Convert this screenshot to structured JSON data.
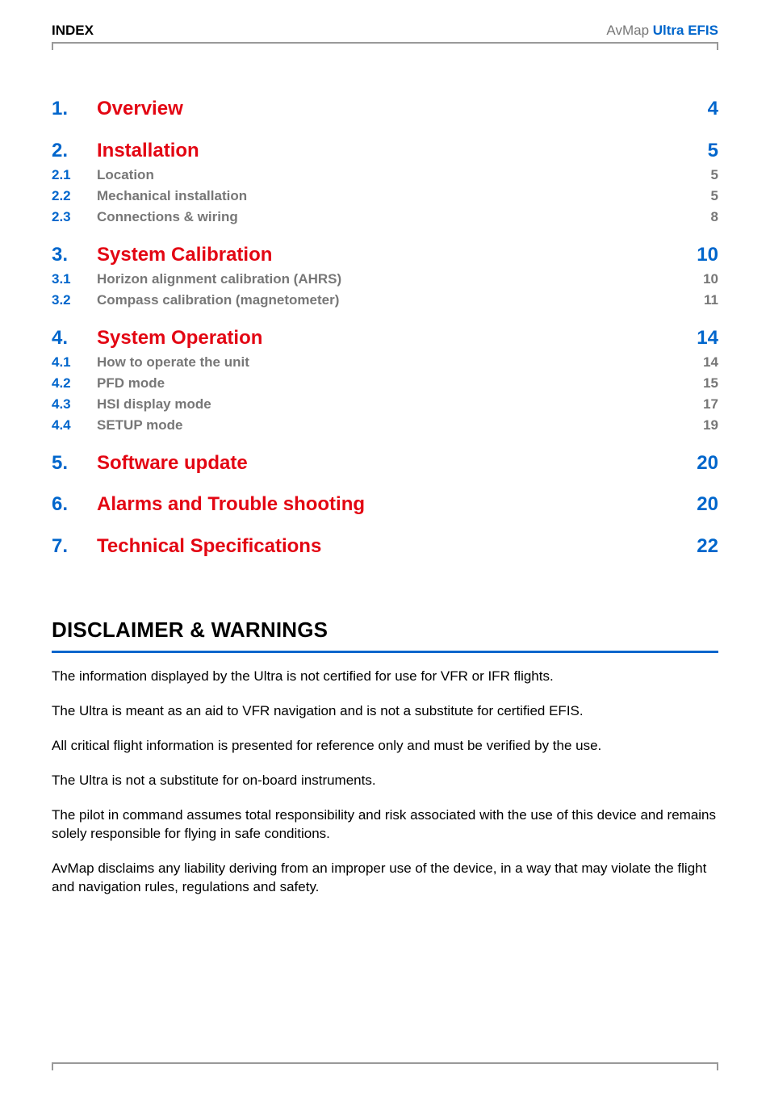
{
  "header": {
    "left": "INDEX",
    "right_prefix": "AvMap ",
    "right_brand": "Ultra EFIS"
  },
  "toc": [
    {
      "type": "chapter",
      "num": "1.",
      "label": "Overview",
      "page": "4"
    },
    {
      "type": "chapter",
      "num": "2.",
      "label": "Installation",
      "page": "5"
    },
    {
      "type": "sub",
      "num": "2.1",
      "label": "Location",
      "page": "5"
    },
    {
      "type": "sub",
      "num": "2.2",
      "label": "Mechanical installation",
      "page": "5"
    },
    {
      "type": "sub",
      "num": "2.3",
      "label": "Connections & wiring",
      "page": "8"
    },
    {
      "type": "chapter",
      "num": "3.",
      "label": "System Calibration",
      "page": "10"
    },
    {
      "type": "sub",
      "num": "3.1",
      "label": "Horizon alignment calibration (AHRS)",
      "page": "10"
    },
    {
      "type": "sub",
      "num": "3.2",
      "label": "Compass calibration (magnetometer)",
      "page": "11"
    },
    {
      "type": "chapter",
      "num": "4.",
      "label": "System Operation",
      "page": "14"
    },
    {
      "type": "sub",
      "num": "4.1",
      "label": "How to operate the unit",
      "page": "14"
    },
    {
      "type": "sub",
      "num": "4.2",
      "label": "PFD mode",
      "page": "15"
    },
    {
      "type": "sub",
      "num": "4.3",
      "label": "HSI display mode",
      "page": "17"
    },
    {
      "type": "sub",
      "num": "4.4",
      "label": "SETUP mode",
      "page": "19"
    },
    {
      "type": "chapter",
      "num": "5.",
      "label": "Software update",
      "page": "20"
    },
    {
      "type": "chapter",
      "num": "6.",
      "label": "Alarms and Trouble shooting",
      "page": "20"
    },
    {
      "type": "chapter",
      "num": "7.",
      "label": "Technical Specifications",
      "page": "22"
    }
  ],
  "disclaimer": {
    "title": "DISCLAIMER & WARNINGS",
    "paragraphs": [
      "The information displayed by the Ultra is not certified for use for VFR or IFR flights.",
      "The Ultra is meant as an aid to VFR navigation and is not a substitute for certified EFIS.",
      "All critical flight information is presented for reference only and must be verified by the use.",
      "The Ultra is not a substitute for on-board instruments.",
      "The pilot in command assumes total responsibility and risk associated with the use of this device and remains solely responsible for flying in safe conditions.",
      "AvMap disclaims any liability deriving from an improper use of the device, in a way that may violate the flight and navigation rules, regulations and safety."
    ]
  },
  "colors": {
    "accent_blue": "#0066cc",
    "accent_red": "#e30613",
    "grey_text": "#777777",
    "rule_grey": "#999999"
  }
}
